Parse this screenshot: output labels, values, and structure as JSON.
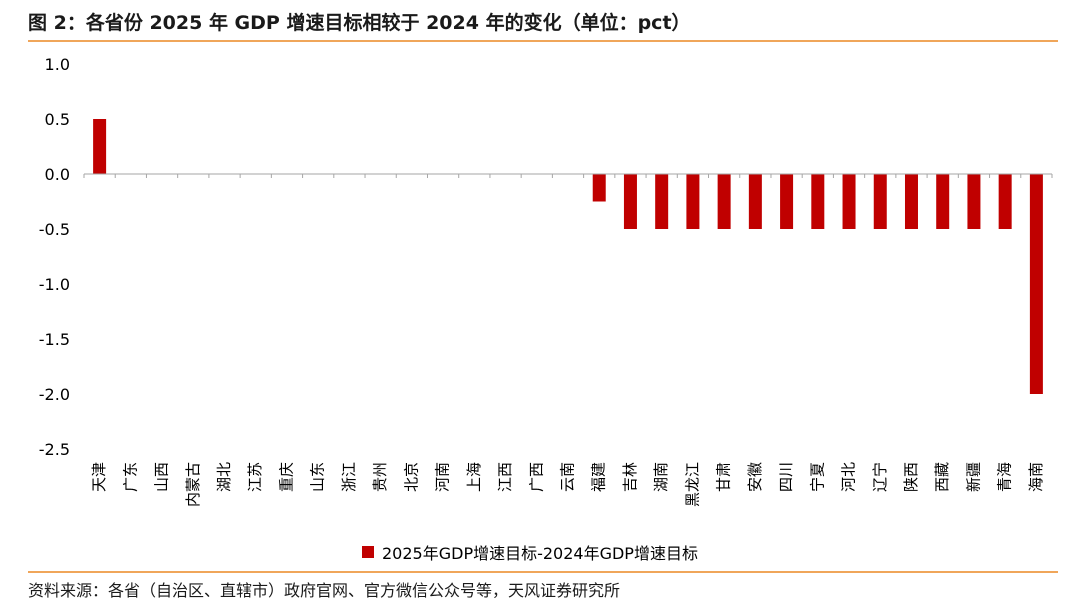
{
  "title": "图 2：各省份 2025 年 GDP 增速目标相较于 2024 年的变化（单位：pct）",
  "source": "资料来源：各省（自治区、直辖市）政府官网、官方微信公众号等，天风证券研究所",
  "colors": {
    "bar": "#c00000",
    "accent_rule": "#f0a65a",
    "axis": "#a6a6a6"
  },
  "chart_data": {
    "type": "bar",
    "categories": [
      "天津",
      "广东",
      "山西",
      "内蒙古",
      "湖北",
      "江苏",
      "重庆",
      "山东",
      "浙江",
      "贵州",
      "北京",
      "河南",
      "上海",
      "江西",
      "广西",
      "云南",
      "福建",
      "吉林",
      "湖南",
      "黑龙江",
      "甘肃",
      "安徽",
      "四川",
      "宁夏",
      "河北",
      "辽宁",
      "陕西",
      "西藏",
      "新疆",
      "青海",
      "海南"
    ],
    "series": [
      {
        "name": "2025年GDP增速目标-2024年GDP增速目标",
        "values": [
          0.5,
          0,
          0,
          0,
          0,
          0,
          0,
          0,
          0,
          0,
          0,
          0,
          0,
          0,
          0,
          0,
          -0.25,
          -0.5,
          -0.5,
          -0.5,
          -0.5,
          -0.5,
          -0.5,
          -0.5,
          -0.5,
          -0.5,
          -0.5,
          -0.5,
          -0.5,
          -0.5,
          -2.0
        ]
      }
    ],
    "yticks": [
      "1.0",
      "0.5",
      "0.0",
      "-0.5",
      "-1.0",
      "-1.5",
      "-2.0",
      "-2.5"
    ],
    "ylim": [
      -2.5,
      1.0
    ],
    "grid": false,
    "legend_position": "bottom"
  }
}
